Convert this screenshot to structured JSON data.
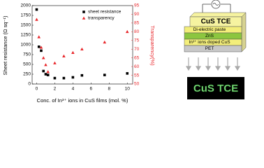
{
  "chart_data": {
    "type": "scatter",
    "x": [
      0,
      0.25,
      0.5,
      0.75,
      1,
      1.25,
      2,
      3,
      4,
      5,
      7.5,
      10
    ],
    "xlabel": "Conc. of In³⁺ ions in CuS films (mol. %)",
    "ylabel": "Sheet resistance (Ω sq⁻¹)",
    "y2label": "Transparency(%)",
    "xlim": [
      -0.5,
      10.6
    ],
    "xticks": [
      0,
      2,
      4,
      6,
      8,
      10
    ],
    "ylim": [
      0,
      2000
    ],
    "yticks": [
      0,
      250,
      500,
      750,
      1000,
      1250,
      1500,
      1750,
      2000
    ],
    "y2lim": [
      50,
      95
    ],
    "y2ticks": [
      50,
      55,
      60,
      65,
      70,
      75,
      80,
      85,
      90,
      95
    ],
    "legend": "upper-right",
    "series": [
      {
        "name": "sheet resistance",
        "color": "#000000",
        "marker": "square",
        "values": [
          1900,
          950,
          850,
          330,
          250,
          230,
          150,
          150,
          170,
          220,
          230,
          270
        ]
      },
      {
        "name": "transparency",
        "color": "#e8262a",
        "marker": "triangle",
        "axis": "y2",
        "values": [
          87,
          77,
          71,
          65,
          61,
          57,
          62,
          66,
          68,
          70,
          74,
          80
        ]
      }
    ]
  },
  "diagram": {
    "top_layer": "CuS TCE",
    "layers": [
      "Di-electric paste",
      "ZnS",
      "In³⁺ ions doped CuS",
      "PET"
    ],
    "output_label": "CuS TCE"
  }
}
